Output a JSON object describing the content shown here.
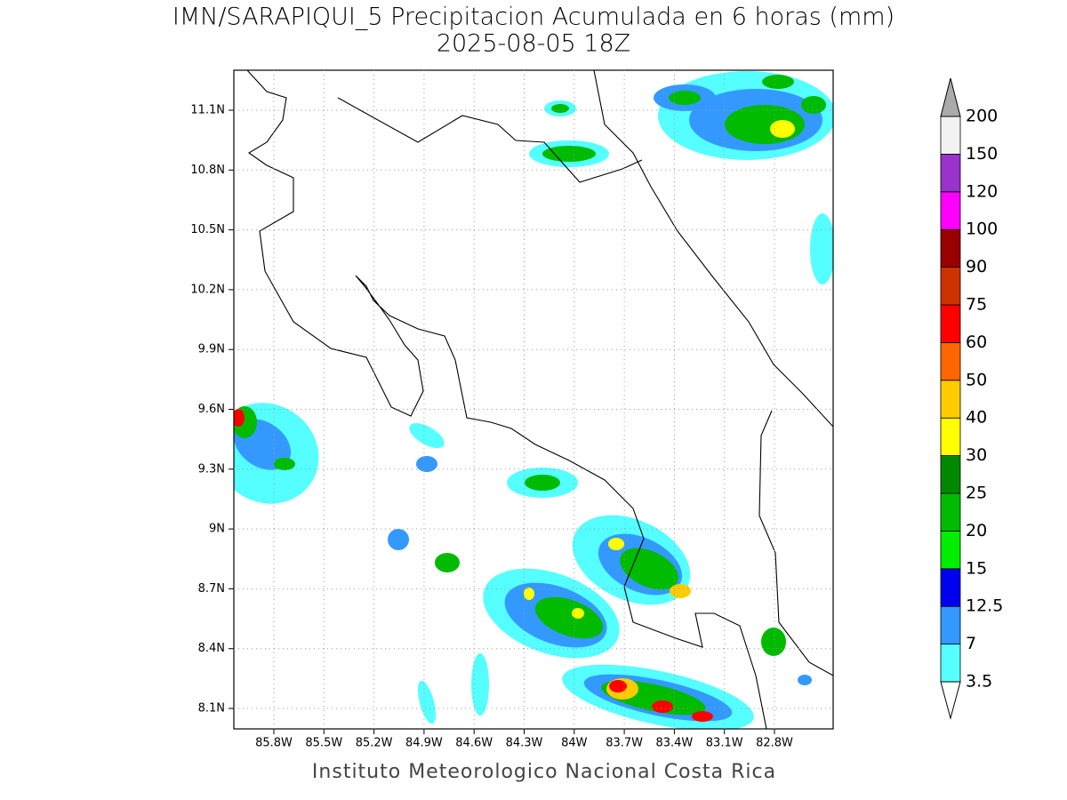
{
  "title": "IMN/SARAPIQUI_5 Precipitacion Acumulada en 6 horas (mm)",
  "subtitle": "2025-08-05 18Z",
  "footer": "Instituto Meteorologico Nacional Costa Rica",
  "map": {
    "lon_ticks": [
      "85.8W",
      "85.5W",
      "85.2W",
      "84.9W",
      "84.6W",
      "84.3W",
      "84W",
      "83.7W",
      "83.4W",
      "83.1W",
      "82.8W"
    ],
    "lat_ticks": [
      "11.1N",
      "10.8N",
      "10.5N",
      "10.2N",
      "9.9N",
      "9.6N",
      "9.3N",
      "9N",
      "8.7N",
      "8.4N",
      "8.1N"
    ]
  },
  "colorbar": {
    "levels": [
      3.5,
      7,
      12.5,
      15,
      20,
      25,
      30,
      40,
      50,
      60,
      75,
      90,
      100,
      120,
      150,
      200
    ],
    "colors": [
      "#55ffff",
      "#3399ff",
      "#0000ee",
      "#00ee00",
      "#00bb00",
      "#008800",
      "#ffff00",
      "#ffcc00",
      "#ff6600",
      "#ff0000",
      "#cc3300",
      "#990000",
      "#ff00ff",
      "#9933cc",
      "#f2f2f2"
    ],
    "over_color": "#aaaaaa",
    "under_color": "#ffffff"
  }
}
